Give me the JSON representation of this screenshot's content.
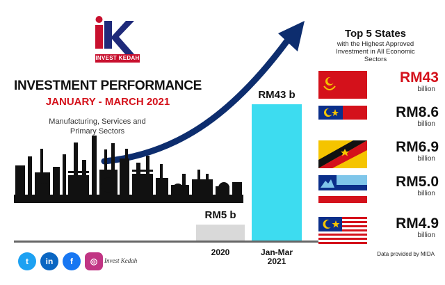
{
  "logo": {
    "text": "INVEST KEDAH"
  },
  "header": {
    "title": "INVESTMENT PERFORMANCE",
    "subtitle": "JANUARY - MARCH 2021",
    "sectors_line1": "Manufacturing, Services and",
    "sectors_line2": "Primary Sectors"
  },
  "chart_data": {
    "type": "bar",
    "categories": [
      "2020",
      "Jan-Mar 2021"
    ],
    "category_lines": [
      [
        "2020"
      ],
      [
        "Jan-Mar",
        "2021"
      ]
    ],
    "values": [
      5,
      43
    ],
    "data_labels": [
      "RM5 b",
      "RM43 b"
    ],
    "colors": [
      "#d9d9d9",
      "#3ddcf0"
    ],
    "ylim": [
      0,
      43
    ],
    "grid": false
  },
  "states": {
    "title": "Top 5 States",
    "subtitle_line1": "with the Highest Approved",
    "subtitle_line2": "Investment in All Economic",
    "subtitle_line3": "Sectors",
    "items": [
      {
        "amount": "RM43",
        "unit": "billion",
        "flag": "kedah-flag",
        "highlight": true
      },
      {
        "amount": "RM8.6",
        "unit": "billion",
        "flag": "melaka-flag",
        "highlight": false
      },
      {
        "amount": "RM6.9",
        "unit": "billion",
        "flag": "sarawak-flag",
        "highlight": false
      },
      {
        "amount": "RM5.0",
        "unit": "billion",
        "flag": "sabah-flag",
        "highlight": false
      },
      {
        "amount": "RM4.9",
        "unit": "billion",
        "flag": "malaysia-flag",
        "highlight": false
      }
    ]
  },
  "source": "Data provided by MIDA",
  "social": {
    "icons": [
      {
        "name": "twitter-icon",
        "glyph": "t",
        "color": "#1da1f2"
      },
      {
        "name": "linkedin-icon",
        "glyph": "in",
        "color": "#0a66c2"
      },
      {
        "name": "facebook-icon",
        "glyph": "f",
        "color": "#1877f2"
      },
      {
        "name": "instagram-icon",
        "glyph": "◎",
        "color": "#c13584"
      }
    ],
    "handle": "Invest Kedah"
  },
  "colors": {
    "accent_red": "#d4111b",
    "arrow_navy": "#0d2d6e",
    "skyline": "#111111"
  }
}
